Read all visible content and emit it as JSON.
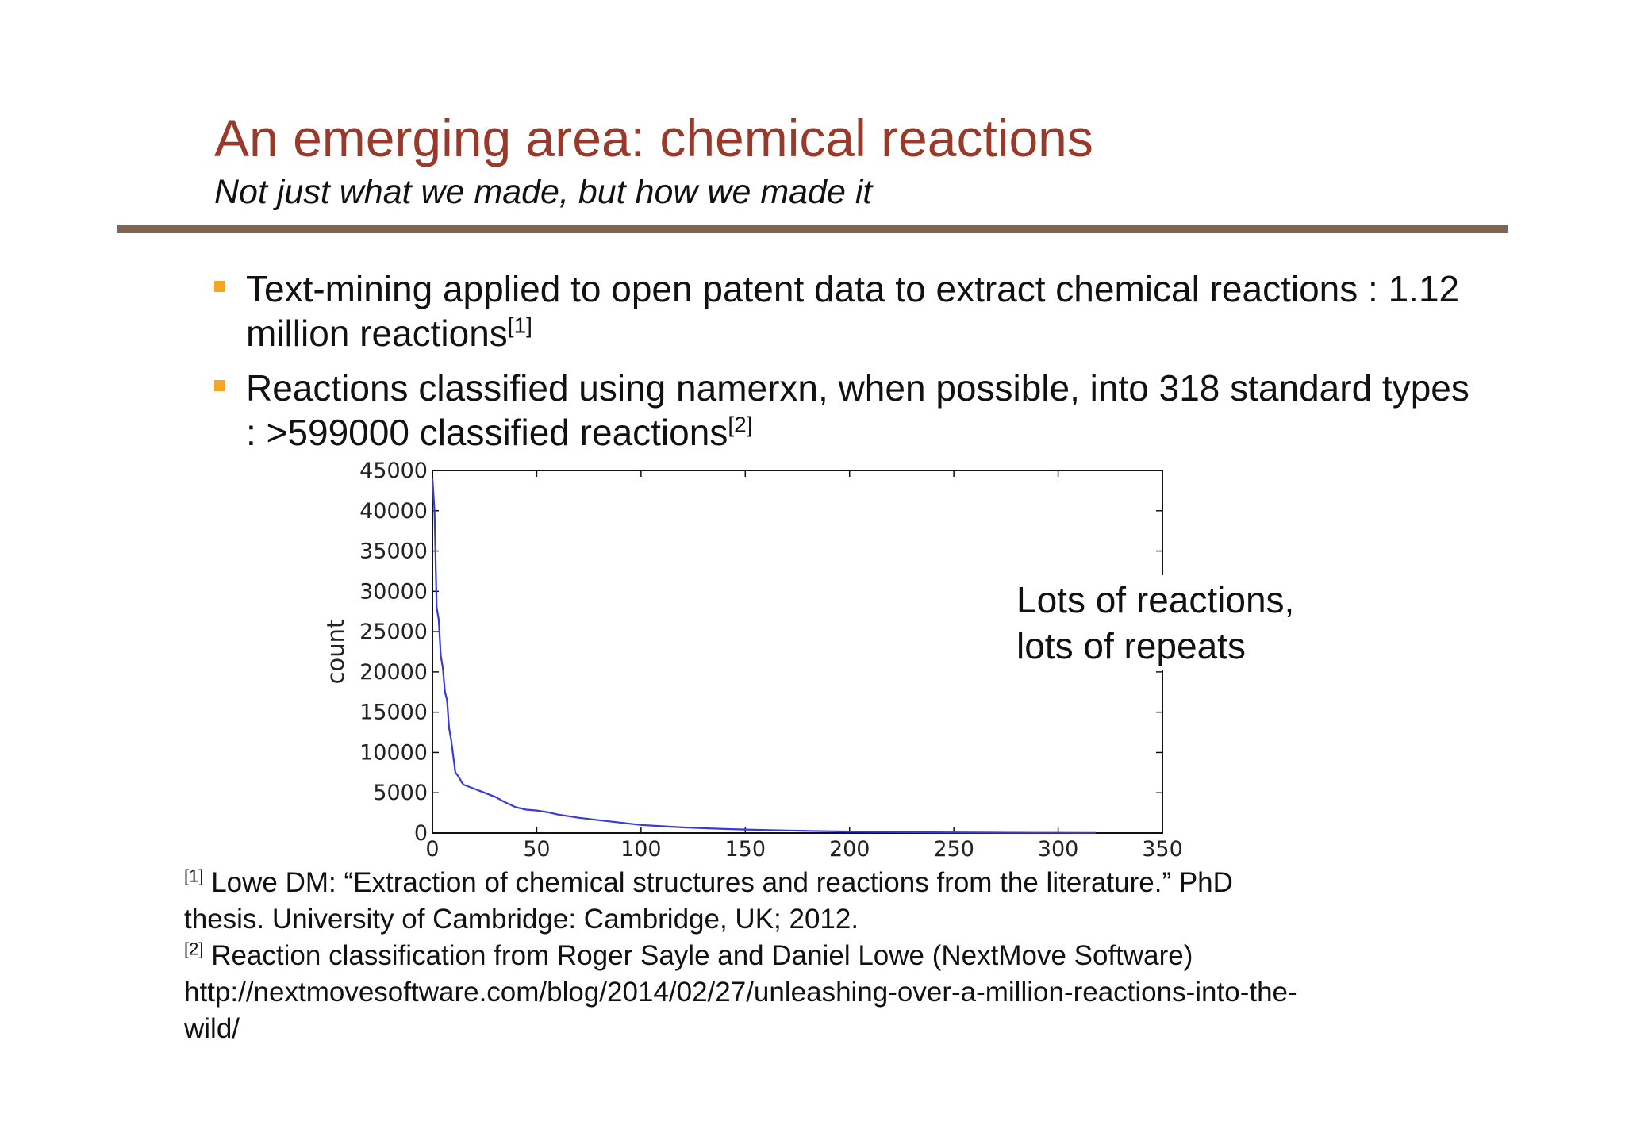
{
  "slide": {
    "title": "An emerging area: chemical reactions",
    "subtitle": "Not just what we made, but how we made it",
    "rule_color": "#7e6552",
    "bullet_color": "#f5a623",
    "bullets": [
      {
        "text": "Text-mining applied to open patent data to extract chemical reactions : 1.12 million reactions",
        "sup": "[1]"
      },
      {
        "text": "Reactions classified using namerxn, when possible, into 318 standard types : >599000 classified reactions",
        "sup": "[2]"
      }
    ],
    "annotation": {
      "line1": "Lots of reactions,",
      "line2": "lots of repeats"
    },
    "references": [
      {
        "marker": "[1]",
        "lines": [
          "Lowe DM: “Extraction of chemical structures and reactions from the literature.” PhD",
          "thesis. University of Cambridge: Cambridge, UK; 2012."
        ]
      },
      {
        "marker": "[2]",
        "lines": [
          "Reaction classification from Roger Sayle and Daniel Lowe (NextMove Software)",
          "http://nextmovesoftware.com/blog/2014/02/27/unleashing-over-a-million-reactions-into-the-",
          "wild/"
        ]
      }
    ]
  },
  "chart_data": {
    "type": "line",
    "title": "",
    "xlabel": "",
    "ylabel": "count",
    "xlim": [
      0,
      350
    ],
    "ylim": [
      0,
      45000
    ],
    "xticks": [
      0,
      50,
      100,
      150,
      200,
      250,
      300,
      350
    ],
    "yticks": [
      0,
      5000,
      10000,
      15000,
      20000,
      25000,
      30000,
      35000,
      40000,
      45000
    ],
    "grid": false,
    "line_color": "#3a3ad6",
    "series": [
      {
        "x": [
          0,
          1,
          2,
          3,
          4,
          5,
          6,
          7,
          8,
          9,
          10,
          11,
          12,
          13,
          14,
          15,
          17,
          20,
          22,
          25,
          28,
          30,
          35,
          40,
          45,
          50,
          55,
          60,
          70,
          80,
          90,
          100,
          110,
          120,
          130,
          140,
          150,
          160,
          170,
          180,
          190,
          200,
          210,
          220,
          230,
          240,
          250,
          260,
          270,
          280,
          290,
          300,
          310,
          318
        ],
        "y": [
          44000,
          40000,
          28000,
          26500,
          22000,
          20500,
          17500,
          16500,
          13000,
          11500,
          9500,
          7500,
          7200,
          6800,
          6300,
          6000,
          5800,
          5500,
          5300,
          5000,
          4700,
          4500,
          3800,
          3200,
          2900,
          2800,
          2600,
          2300,
          1900,
          1600,
          1300,
          1000,
          850,
          700,
          600,
          500,
          430,
          370,
          320,
          270,
          230,
          190,
          160,
          130,
          110,
          90,
          75,
          60,
          50,
          40,
          30,
          25,
          20,
          15
        ]
      }
    ]
  }
}
